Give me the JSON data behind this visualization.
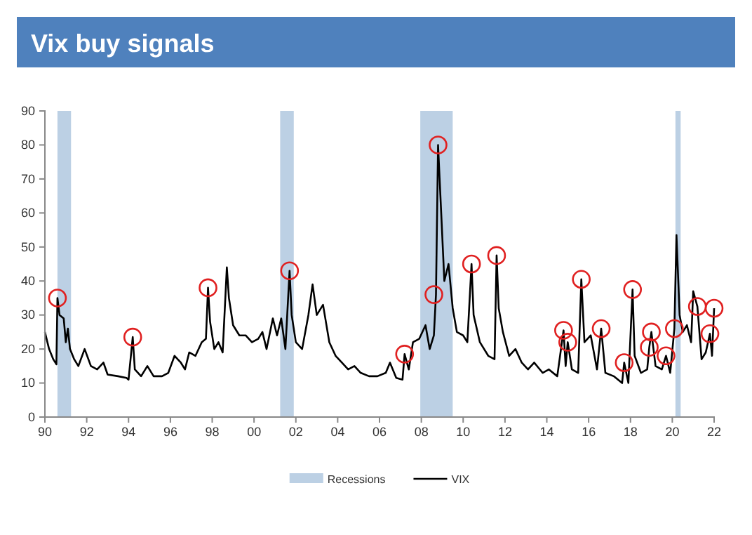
{
  "chart_data": {
    "type": "line",
    "title": "Vix buy signals",
    "xlim": [
      1990,
      2022
    ],
    "xticks": [
      {
        "value": 1990,
        "label": "90"
      },
      {
        "value": 1992,
        "label": "92"
      },
      {
        "value": 1994,
        "label": "94"
      },
      {
        "value": 1996,
        "label": "96"
      },
      {
        "value": 1998,
        "label": "98"
      },
      {
        "value": 2000,
        "label": "00"
      },
      {
        "value": 2002,
        "label": "02"
      },
      {
        "value": 2004,
        "label": "04"
      },
      {
        "value": 2006,
        "label": "06"
      },
      {
        "value": 2008,
        "label": "08"
      },
      {
        "value": 2010,
        "label": "10"
      },
      {
        "value": 2012,
        "label": "12"
      },
      {
        "value": 2014,
        "label": "14"
      },
      {
        "value": 2016,
        "label": "16"
      },
      {
        "value": 2018,
        "label": "18"
      },
      {
        "value": 2020,
        "label": "20"
      },
      {
        "value": 2022,
        "label": "22"
      }
    ],
    "ylim": [
      0,
      90
    ],
    "yticks": [
      0,
      10,
      20,
      30,
      40,
      50,
      60,
      70,
      80,
      90
    ],
    "grid": false,
    "legend": "bottom",
    "bands": [
      {
        "axis": "x",
        "from": 1990.6,
        "to": 1991.25,
        "label": "Recessions",
        "color": "#bcd0e4"
      },
      {
        "axis": "x",
        "from": 2001.25,
        "to": 2001.9,
        "color": "#bcd0e4"
      },
      {
        "axis": "x",
        "from": 2007.95,
        "to": 2009.5,
        "color": "#bcd0e4"
      },
      {
        "axis": "x",
        "from": 2020.15,
        "to": 2020.4,
        "color": "#bcd0e4"
      }
    ],
    "series": [
      {
        "name": "VIX",
        "color": "#000000",
        "marker": "none",
        "line_style": "solid",
        "x": [
          1990.0,
          1990.2,
          1990.4,
          1990.55,
          1990.6,
          1990.7,
          1990.9,
          1991.0,
          1991.1,
          1991.2,
          1991.4,
          1991.6,
          1991.9,
          1992.2,
          1992.5,
          1992.8,
          1993.0,
          1993.5,
          1993.9,
          1994.0,
          1994.2,
          1994.3,
          1994.6,
          1994.9,
          1995.2,
          1995.6,
          1995.9,
          1996.2,
          1996.5,
          1996.7,
          1996.9,
          1997.2,
          1997.5,
          1997.7,
          1997.8,
          1997.9,
          1998.1,
          1998.3,
          1998.5,
          1998.7,
          1998.8,
          1999.0,
          1999.3,
          1999.6,
          1999.9,
          2000.2,
          2000.4,
          2000.6,
          2000.9,
          2001.1,
          2001.3,
          2001.5,
          2001.7,
          2001.8,
          2002.0,
          2002.3,
          2002.6,
          2002.8,
          2003.0,
          2003.3,
          2003.6,
          2003.9,
          2004.2,
          2004.5,
          2004.8,
          2005.1,
          2005.5,
          2005.9,
          2006.3,
          2006.5,
          2006.8,
          2007.1,
          2007.2,
          2007.4,
          2007.6,
          2007.9,
          2008.2,
          2008.4,
          2008.6,
          2008.7,
          2008.8,
          2008.95,
          2009.1,
          2009.3,
          2009.5,
          2009.7,
          2010.0,
          2010.2,
          2010.4,
          2010.5,
          2010.8,
          2011.2,
          2011.5,
          2011.6,
          2011.7,
          2011.9,
          2012.2,
          2012.5,
          2012.8,
          2013.1,
          2013.4,
          2013.8,
          2014.1,
          2014.5,
          2014.8,
          2014.9,
          2015.0,
          2015.2,
          2015.5,
          2015.65,
          2015.8,
          2016.1,
          2016.4,
          2016.6,
          2016.8,
          2017.2,
          2017.6,
          2017.7,
          2017.9,
          2018.1,
          2018.2,
          2018.5,
          2018.8,
          2018.9,
          2019.0,
          2019.2,
          2019.5,
          2019.7,
          2019.9,
          2020.1,
          2020.2,
          2020.35,
          2020.5,
          2020.7,
          2020.9,
          2021.0,
          2021.2,
          2021.4,
          2021.6,
          2021.8,
          2021.9,
          2022.0
        ],
        "values": [
          25,
          20,
          17,
          15.5,
          35,
          30,
          29,
          22,
          26,
          20,
          17,
          15,
          20,
          15,
          14,
          16,
          12.5,
          12,
          11.5,
          11,
          23.5,
          14,
          12,
          15,
          12,
          12,
          13,
          18,
          16,
          14,
          19,
          18,
          22,
          23,
          38,
          28,
          20,
          22,
          19,
          44,
          35,
          27,
          24,
          24,
          22,
          23,
          25,
          20,
          29,
          24,
          29,
          20,
          43,
          30,
          22,
          20,
          30,
          39,
          30,
          33,
          22,
          18,
          16,
          14,
          15,
          13,
          12,
          12,
          13,
          16,
          11.5,
          11,
          18.5,
          14,
          22,
          23,
          27,
          20,
          24,
          36,
          80,
          60,
          40,
          45,
          32,
          25,
          24,
          22,
          45,
          30,
          22,
          18,
          17,
          47.5,
          32,
          25,
          18,
          20,
          16,
          14,
          16,
          13,
          14,
          12,
          25.5,
          15,
          22,
          14,
          13,
          40.5,
          22,
          24,
          14,
          26,
          13,
          12,
          10,
          16,
          10,
          37.5,
          18,
          13,
          14,
          20.5,
          25,
          15,
          14,
          18,
          13,
          26,
          53.5,
          30,
          25,
          27,
          22,
          37,
          32.5,
          17,
          19,
          24.5,
          18,
          32
        ]
      },
      {
        "type": "scatter",
        "color": "#e02020",
        "marker": "circle",
        "x": [
          1990.6,
          1994.2,
          1997.8,
          2001.7,
          2007.2,
          2008.6,
          2008.8,
          2010.4,
          2011.6,
          2014.8,
          2015.0,
          2015.65,
          2016.6,
          2017.7,
          2018.1,
          2018.9,
          2019.0,
          2019.7,
          2020.1,
          2021.2,
          2021.8,
          2022.0
        ],
        "values": [
          35,
          23.5,
          38,
          43,
          18.5,
          36,
          80,
          45,
          47.5,
          25.5,
          22,
          40.5,
          26,
          16,
          37.5,
          20.5,
          25,
          18,
          26,
          32.5,
          24.5,
          32
        ]
      }
    ]
  }
}
